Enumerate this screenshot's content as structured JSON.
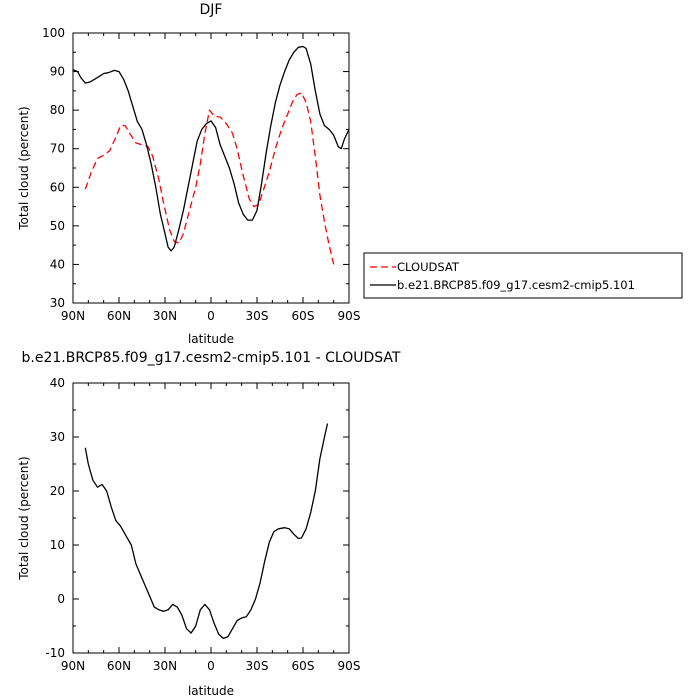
{
  "chart_data": [
    {
      "type": "line",
      "title": "DJF",
      "xlabel": "latitude",
      "ylabel": "Total cloud (percent)",
      "xlim": [
        90,
        -90
      ],
      "ylim": [
        30,
        100
      ],
      "xticks": [
        90,
        60,
        30,
        0,
        -30,
        -60,
        -90
      ],
      "xtick_labels": [
        "90N",
        "60N",
        "30N",
        "0",
        "30S",
        "60S",
        "90S"
      ],
      "yticks": [
        30,
        40,
        50,
        60,
        70,
        80,
        90,
        100
      ],
      "ytick_labels": [
        "30",
        "40",
        "50",
        "60",
        "70",
        "80",
        "90",
        "100"
      ],
      "legend_position": "right",
      "grid": false,
      "series": [
        {
          "name": "CLOUDSAT",
          "color": "#ff0000",
          "dash": "dashed",
          "points": [
            [
              82,
              59.5
            ],
            [
              78,
              64
            ],
            [
              74,
              67.5
            ],
            [
              70,
              68.3
            ],
            [
              66,
              69.5
            ],
            [
              62,
              73
            ],
            [
              59,
              76
            ],
            [
              56,
              76
            ],
            [
              53,
              74
            ],
            [
              49,
              71.5
            ],
            [
              45,
              71
            ],
            [
              41,
              70.5
            ],
            [
              38,
              68
            ],
            [
              34,
              62
            ],
            [
              31,
              56
            ],
            [
              27,
              49
            ],
            [
              24,
              46
            ],
            [
              21,
              45.5
            ],
            [
              18,
              48
            ],
            [
              14,
              54
            ],
            [
              10,
              60
            ],
            [
              7,
              66
            ],
            [
              4,
              74
            ],
            [
              1,
              80
            ],
            [
              -2,
              78.5
            ],
            [
              -6,
              78.2
            ],
            [
              -10,
              76.5
            ],
            [
              -14,
              74
            ],
            [
              -17,
              70
            ],
            [
              -21,
              63
            ],
            [
              -25,
              57
            ],
            [
              -28,
              55
            ],
            [
              -31,
              55.5
            ],
            [
              -34,
              59
            ],
            [
              -38,
              64
            ],
            [
              -42,
              70
            ],
            [
              -46,
              75
            ],
            [
              -50,
              79
            ],
            [
              -53,
              82
            ],
            [
              -56,
              84
            ],
            [
              -59,
              84.5
            ],
            [
              -62,
              82
            ],
            [
              -65,
              77
            ],
            [
              -68,
              68
            ],
            [
              -71,
              58
            ],
            [
              -74,
              51
            ],
            [
              -77,
              45
            ],
            [
              -80,
              40
            ]
          ]
        },
        {
          "name": "b.e21.BRCP85.f09_g17.cesm2-cmip5.101",
          "color": "#000000",
          "dash": "solid",
          "points": [
            [
              90,
              90.5
            ],
            [
              87,
              90
            ],
            [
              85,
              88.5
            ],
            [
              82,
              87
            ],
            [
              79,
              87.3
            ],
            [
              76,
              88
            ],
            [
              73,
              88.7
            ],
            [
              70,
              89.5
            ],
            [
              67,
              89.7
            ],
            [
              63,
              90.3
            ],
            [
              60,
              90
            ],
            [
              57,
              88
            ],
            [
              54,
              85
            ],
            [
              51,
              81
            ],
            [
              48,
              77
            ],
            [
              45,
              75
            ],
            [
              42,
              71
            ],
            [
              39,
              66
            ],
            [
              36,
              60
            ],
            [
              33,
              53
            ],
            [
              30,
              48
            ],
            [
              28,
              44.5
            ],
            [
              26,
              43.5
            ],
            [
              24,
              44.5
            ],
            [
              21,
              49
            ],
            [
              18,
              54
            ],
            [
              15,
              60
            ],
            [
              12,
              66
            ],
            [
              9,
              72
            ],
            [
              6,
              75
            ],
            [
              3,
              76.5
            ],
            [
              0,
              77.2
            ],
            [
              -3,
              75.5
            ],
            [
              -6,
              71
            ],
            [
              -9,
              68
            ],
            [
              -12,
              65
            ],
            [
              -15,
              61
            ],
            [
              -18,
              56
            ],
            [
              -21,
              53
            ],
            [
              -24,
              51.5
            ],
            [
              -27,
              51.5
            ],
            [
              -30,
              54
            ],
            [
              -33,
              61
            ],
            [
              -36,
              69
            ],
            [
              -39,
              76
            ],
            [
              -42,
              82
            ],
            [
              -45,
              86.5
            ],
            [
              -48,
              90
            ],
            [
              -51,
              93
            ],
            [
              -54,
              95
            ],
            [
              -57,
              96.3
            ],
            [
              -60,
              96.5
            ],
            [
              -62,
              96
            ],
            [
              -65,
              92
            ],
            [
              -68,
              85
            ],
            [
              -71,
              79
            ],
            [
              -74,
              76
            ],
            [
              -77,
              75
            ],
            [
              -80,
              73.5
            ],
            [
              -83,
              70.5
            ],
            [
              -85,
              70
            ],
            [
              -87,
              72.5
            ],
            [
              -90,
              75
            ]
          ]
        }
      ]
    },
    {
      "type": "line",
      "title": "b.e21.BRCP85.f09_g17.cesm2-cmip5.101 - CLOUDSAT",
      "xlabel": "latitude",
      "ylabel": "Total cloud (percent)",
      "xlim": [
        90,
        -90
      ],
      "ylim": [
        -10,
        40
      ],
      "xticks": [
        90,
        60,
        30,
        0,
        -30,
        -60,
        -90
      ],
      "xtick_labels": [
        "90N",
        "60N",
        "30N",
        "0",
        "30S",
        "60S",
        "90S"
      ],
      "yticks": [
        -10,
        0,
        10,
        20,
        30,
        40
      ],
      "ytick_labels": [
        "-10",
        "0",
        "10",
        "20",
        "30",
        "40"
      ],
      "grid": false,
      "series": [
        {
          "color": "#000000",
          "dash": "solid",
          "points": [
            [
              82,
              28
            ],
            [
              80,
              25
            ],
            [
              77,
              22
            ],
            [
              74,
              20.7
            ],
            [
              71,
              21.2
            ],
            [
              68,
              20
            ],
            [
              65,
              17
            ],
            [
              62,
              14.5
            ],
            [
              59,
              13.5
            ],
            [
              56,
              12
            ],
            [
              52,
              10
            ],
            [
              49,
              6.5
            ],
            [
              46,
              4.5
            ],
            [
              43,
              2.5
            ],
            [
              40,
              0.5
            ],
            [
              37,
              -1.5
            ],
            [
              34,
              -2
            ],
            [
              31,
              -2.3
            ],
            [
              28,
              -2
            ],
            [
              25,
              -1
            ],
            [
              22,
              -1.5
            ],
            [
              19,
              -3
            ],
            [
              16,
              -5.5
            ],
            [
              13,
              -6.3
            ],
            [
              10,
              -5
            ],
            [
              7,
              -2
            ],
            [
              4,
              -1
            ],
            [
              1,
              -2
            ],
            [
              -2,
              -4.5
            ],
            [
              -5,
              -6.5
            ],
            [
              -8,
              -7.3
            ],
            [
              -11,
              -7
            ],
            [
              -14,
              -5.5
            ],
            [
              -17,
              -4
            ],
            [
              -20,
              -3.5
            ],
            [
              -23,
              -3.3
            ],
            [
              -26,
              -2
            ],
            [
              -29,
              0
            ],
            [
              -32,
              3
            ],
            [
              -35,
              7
            ],
            [
              -38,
              10.5
            ],
            [
              -41,
              12.5
            ],
            [
              -44,
              13
            ],
            [
              -48,
              13.2
            ],
            [
              -51,
              13
            ],
            [
              -54,
              12
            ],
            [
              -57,
              11.2
            ],
            [
              -59,
              11.3
            ],
            [
              -62,
              13
            ],
            [
              -65,
              16
            ],
            [
              -68,
              20
            ],
            [
              -71,
              26
            ],
            [
              -74,
              30
            ],
            [
              -76,
              32.5
            ]
          ]
        }
      ]
    }
  ]
}
